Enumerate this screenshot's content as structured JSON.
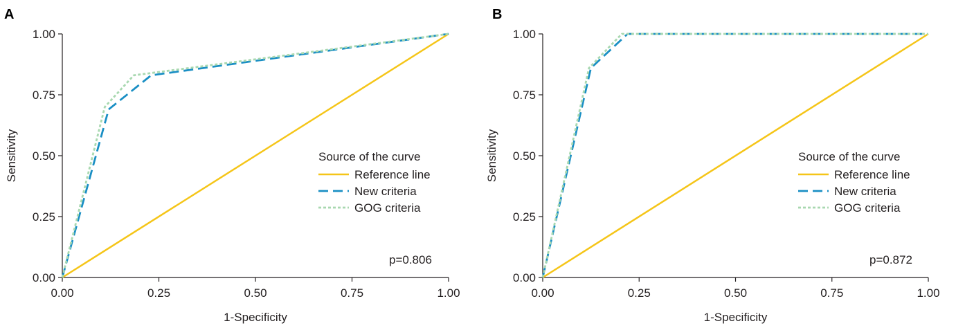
{
  "colors": {
    "reference": "#f5c518",
    "new": "#1a8fc4",
    "gog": "#a8d8b0",
    "axis": "#231f20"
  },
  "chart_data": [
    {
      "type": "line",
      "panel": "A",
      "xlabel": "1-Specificity",
      "ylabel": "Sensitivity",
      "xlim": [
        0,
        1
      ],
      "ylim": [
        0,
        1
      ],
      "xticks": [
        "0.00",
        "0.25",
        "0.50",
        "0.75",
        "1.00"
      ],
      "yticks": [
        "0.00",
        "0.25",
        "0.50",
        "0.75",
        "1.00"
      ],
      "legend_title": "Source of the curve",
      "legend_position": "right",
      "annotation": "p=0.806",
      "series": [
        {
          "name": "Reference line",
          "style": "solid",
          "x": [
            0,
            1
          ],
          "y": [
            0,
            1
          ]
        },
        {
          "name": "New criteria",
          "style": "dashed",
          "x": [
            0,
            0.12,
            0.23,
            1
          ],
          "y": [
            0,
            0.69,
            0.83,
            1
          ]
        },
        {
          "name": "GOG criteria",
          "style": "dotted",
          "x": [
            0,
            0.11,
            0.185,
            1
          ],
          "y": [
            0,
            0.7,
            0.83,
            1
          ]
        }
      ]
    },
    {
      "type": "line",
      "panel": "B",
      "xlabel": "1-Specificity",
      "ylabel": "Sensitivity",
      "xlim": [
        0,
        1
      ],
      "ylim": [
        0,
        1
      ],
      "xticks": [
        "0.00",
        "0.25",
        "0.50",
        "0.75",
        "1.00"
      ],
      "yticks": [
        "0.00",
        "0.25",
        "0.50",
        "0.75",
        "1.00"
      ],
      "legend_title": "Source of the curve",
      "legend_position": "right",
      "annotation": "p=0.872",
      "series": [
        {
          "name": "Reference line",
          "style": "solid",
          "x": [
            0,
            1
          ],
          "y": [
            0,
            1
          ]
        },
        {
          "name": "New criteria",
          "style": "dashed",
          "x": [
            0,
            0.125,
            0.22,
            1
          ],
          "y": [
            0,
            0.86,
            1,
            1
          ]
        },
        {
          "name": "GOG criteria",
          "style": "dotted",
          "x": [
            0,
            0.12,
            0.205,
            1
          ],
          "y": [
            0,
            0.86,
            1,
            1
          ]
        }
      ]
    }
  ]
}
